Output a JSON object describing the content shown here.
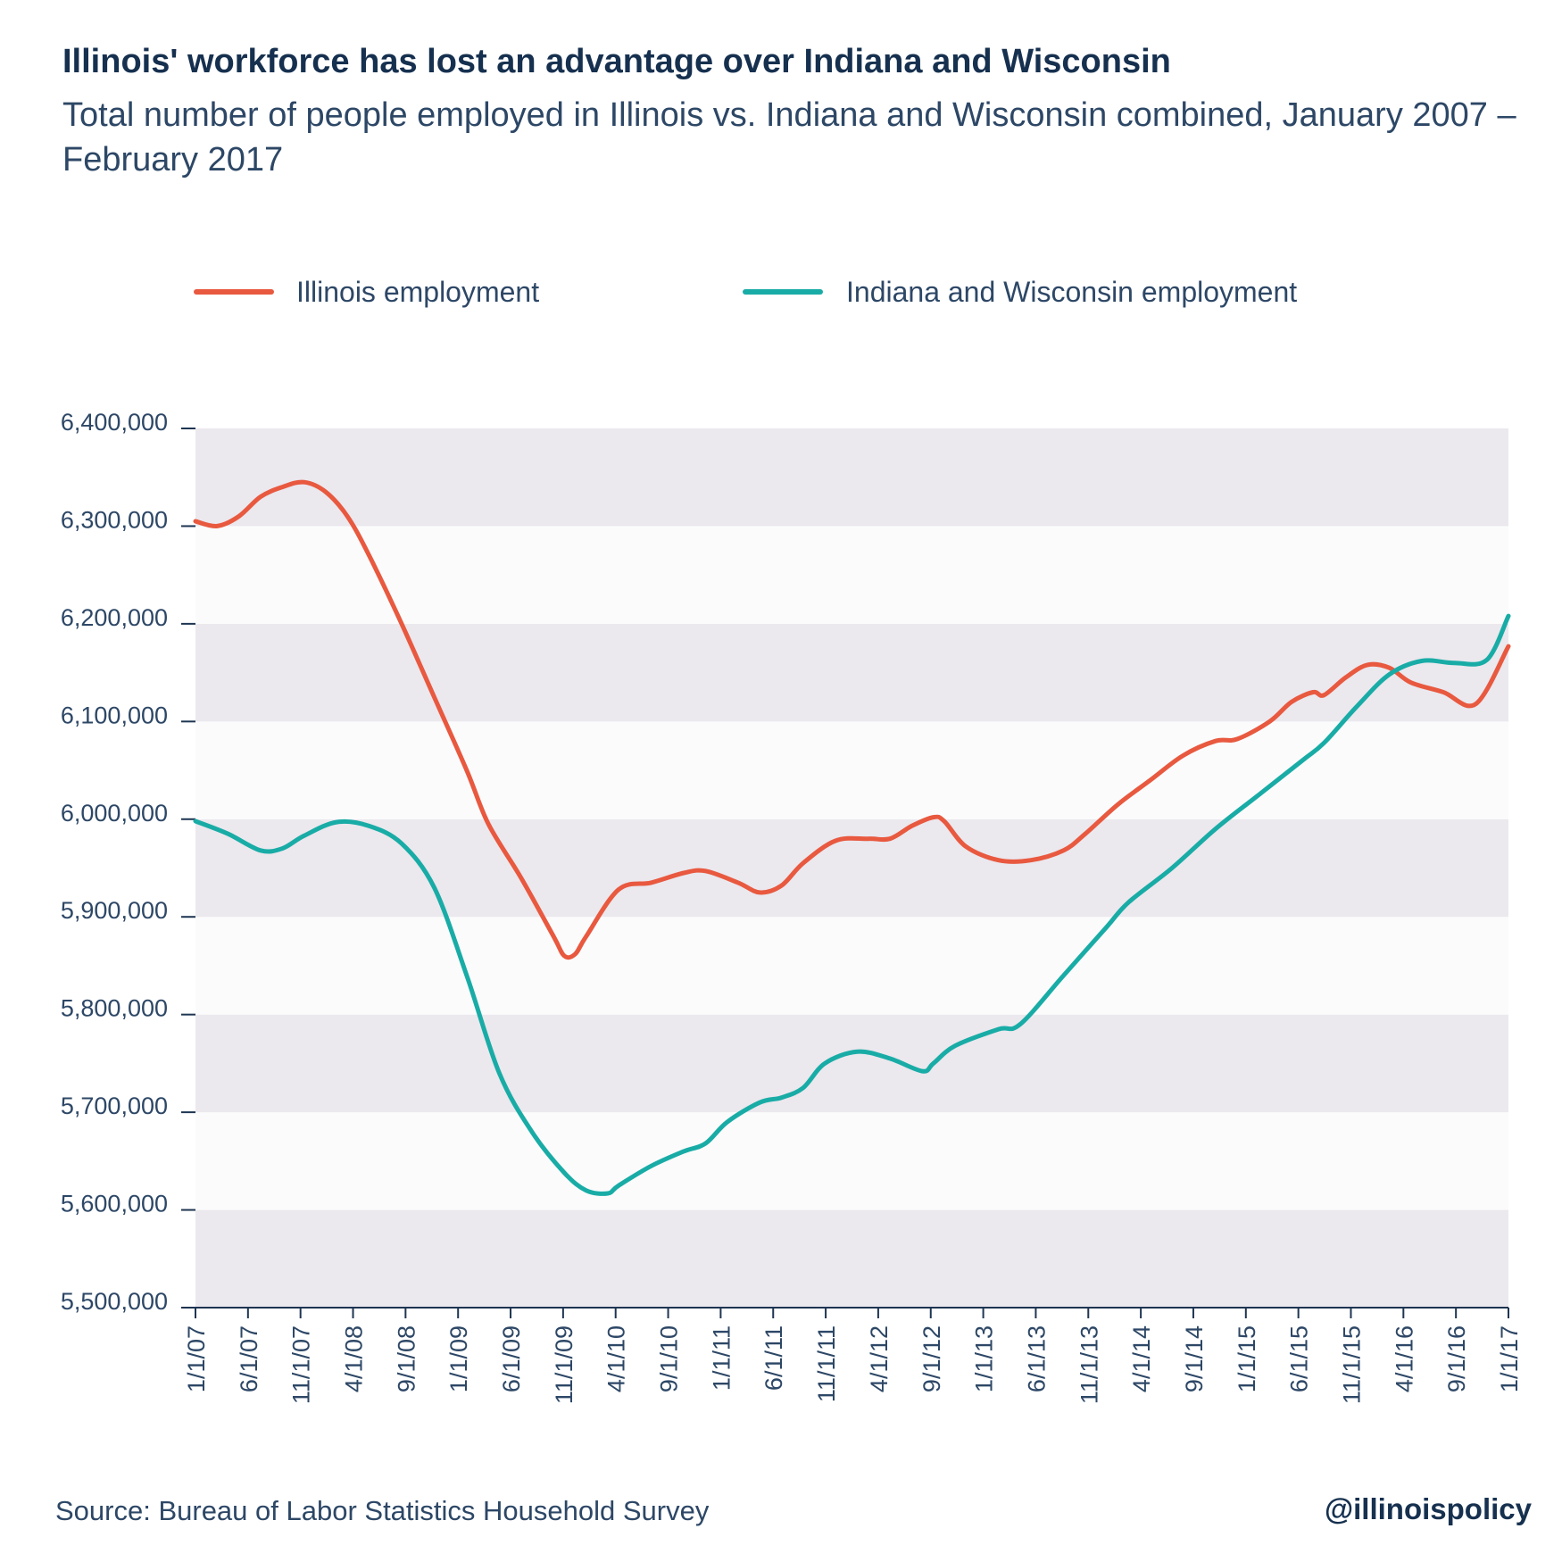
{
  "header": {
    "title": "Illinois' workforce has lost an advantage over Indiana and Wisconsin",
    "subtitle": "Total number of people employed in Illinois vs. Indiana and Wisconsin combined, January 2007 – February 2017"
  },
  "footer": {
    "source": "Source: Bureau of Labor Statistics Household Survey",
    "handle": "@illinoispolicy"
  },
  "chart_data": {
    "type": "line",
    "title": "Illinois' workforce has lost an advantage over Indiana and Wisconsin",
    "subtitle": "Total number of people employed in Illinois vs. Indiana and Wisconsin combined, January 2007 – February 2017",
    "xlabel": "",
    "ylabel": "",
    "ylim": [
      5500000,
      6400000
    ],
    "yticks": [
      5500000,
      5600000,
      5700000,
      5800000,
      5900000,
      6000000,
      6100000,
      6200000,
      6300000,
      6400000
    ],
    "ytick_labels": [
      "5,500,000",
      "5,600,000",
      "5,700,000",
      "5,800,000",
      "5,900,000",
      "6,000,000",
      "6,100,000",
      "6,200,000",
      "6,300,000",
      "6,400,000"
    ],
    "xtick_labels": [
      "1/1/07",
      "6/1/07",
      "11/1/07",
      "4/1/08",
      "9/1/08",
      "1/1/09",
      "6/1/09",
      "11/1/09",
      "4/1/10",
      "9/1/10",
      "1/1/11",
      "6/1/11",
      "11/1/11",
      "4/1/12",
      "9/1/12",
      "1/1/13",
      "6/1/13",
      "11/1/13",
      "4/1/14",
      "9/1/14",
      "1/1/15",
      "6/1/15",
      "11/1/15",
      "4/1/16",
      "9/1/16",
      "1/1/17"
    ],
    "x_range": [
      "2007-01",
      "2017-02"
    ],
    "legend_position": "top",
    "grid": "alternating horizontal bands",
    "series": [
      {
        "name": "Illinois employment",
        "color": "#e8593f",
        "points": [
          [
            "2007-01",
            6305000
          ],
          [
            "2007-03",
            6300000
          ],
          [
            "2007-05",
            6310000
          ],
          [
            "2007-07",
            6330000
          ],
          [
            "2007-09",
            6340000
          ],
          [
            "2007-11",
            6345000
          ],
          [
            "2008-01",
            6335000
          ],
          [
            "2008-03",
            6310000
          ],
          [
            "2008-05",
            6270000
          ],
          [
            "2008-08",
            6200000
          ],
          [
            "2008-11",
            6125000
          ],
          [
            "2009-02",
            6050000
          ],
          [
            "2009-04",
            5995000
          ],
          [
            "2009-07",
            5940000
          ],
          [
            "2009-10",
            5880000
          ],
          [
            "2009-11",
            5860000
          ],
          [
            "2009-12",
            5862000
          ],
          [
            "2010-01",
            5880000
          ],
          [
            "2010-04",
            5928000
          ],
          [
            "2010-07",
            5935000
          ],
          [
            "2010-10",
            5945000
          ],
          [
            "2010-12",
            5947000
          ],
          [
            "2011-03",
            5935000
          ],
          [
            "2011-05",
            5925000
          ],
          [
            "2011-07",
            5932000
          ],
          [
            "2011-09",
            5955000
          ],
          [
            "2011-12",
            5978000
          ],
          [
            "2012-03",
            5980000
          ],
          [
            "2012-05",
            5980000
          ],
          [
            "2012-07",
            5993000
          ],
          [
            "2012-09",
            6002000
          ],
          [
            "2012-10",
            5998000
          ],
          [
            "2012-12",
            5972000
          ],
          [
            "2013-03",
            5958000
          ],
          [
            "2013-06",
            5958000
          ],
          [
            "2013-09",
            5968000
          ],
          [
            "2013-11",
            5985000
          ],
          [
            "2014-02",
            6015000
          ],
          [
            "2014-05",
            6040000
          ],
          [
            "2014-08",
            6065000
          ],
          [
            "2014-11",
            6080000
          ],
          [
            "2015-01",
            6082000
          ],
          [
            "2015-04",
            6100000
          ],
          [
            "2015-06",
            6120000
          ],
          [
            "2015-08",
            6130000
          ],
          [
            "2015-09",
            6127000
          ],
          [
            "2015-11",
            6145000
          ],
          [
            "2016-01",
            6158000
          ],
          [
            "2016-03",
            6155000
          ],
          [
            "2016-05",
            6140000
          ],
          [
            "2016-08",
            6130000
          ],
          [
            "2016-11",
            6118000
          ],
          [
            "2017-02",
            6177000
          ]
        ]
      },
      {
        "name": "Indiana and Wisconsin employment",
        "color": "#19aca6",
        "points": [
          [
            "2007-01",
            5998000
          ],
          [
            "2007-04",
            5985000
          ],
          [
            "2007-07",
            5968000
          ],
          [
            "2007-09",
            5970000
          ],
          [
            "2007-11",
            5983000
          ],
          [
            "2008-02",
            5997000
          ],
          [
            "2008-05",
            5993000
          ],
          [
            "2008-08",
            5975000
          ],
          [
            "2008-11",
            5930000
          ],
          [
            "2009-02",
            5840000
          ],
          [
            "2009-05",
            5740000
          ],
          [
            "2009-08",
            5680000
          ],
          [
            "2009-11",
            5638000
          ],
          [
            "2010-01",
            5620000
          ],
          [
            "2010-03",
            5617000
          ],
          [
            "2010-04",
            5625000
          ],
          [
            "2010-07",
            5645000
          ],
          [
            "2010-10",
            5660000
          ],
          [
            "2010-12",
            5668000
          ],
          [
            "2011-02",
            5690000
          ],
          [
            "2011-05",
            5710000
          ],
          [
            "2011-07",
            5715000
          ],
          [
            "2011-09",
            5725000
          ],
          [
            "2011-11",
            5750000
          ],
          [
            "2012-02",
            5762000
          ],
          [
            "2012-05",
            5755000
          ],
          [
            "2012-08",
            5742000
          ],
          [
            "2012-09",
            5750000
          ],
          [
            "2012-11",
            5768000
          ],
          [
            "2013-03",
            5785000
          ],
          [
            "2013-05",
            5790000
          ],
          [
            "2013-09",
            5840000
          ],
          [
            "2014-01",
            5890000
          ],
          [
            "2014-03",
            5915000
          ],
          [
            "2014-07",
            5950000
          ],
          [
            "2014-11",
            5990000
          ],
          [
            "2015-03",
            6025000
          ],
          [
            "2015-07",
            6060000
          ],
          [
            "2015-09",
            6078000
          ],
          [
            "2015-12",
            6115000
          ],
          [
            "2016-03",
            6148000
          ],
          [
            "2016-06",
            6162000
          ],
          [
            "2016-09",
            6160000
          ],
          [
            "2016-12",
            6163000
          ],
          [
            "2017-02",
            6208000
          ]
        ]
      }
    ]
  }
}
